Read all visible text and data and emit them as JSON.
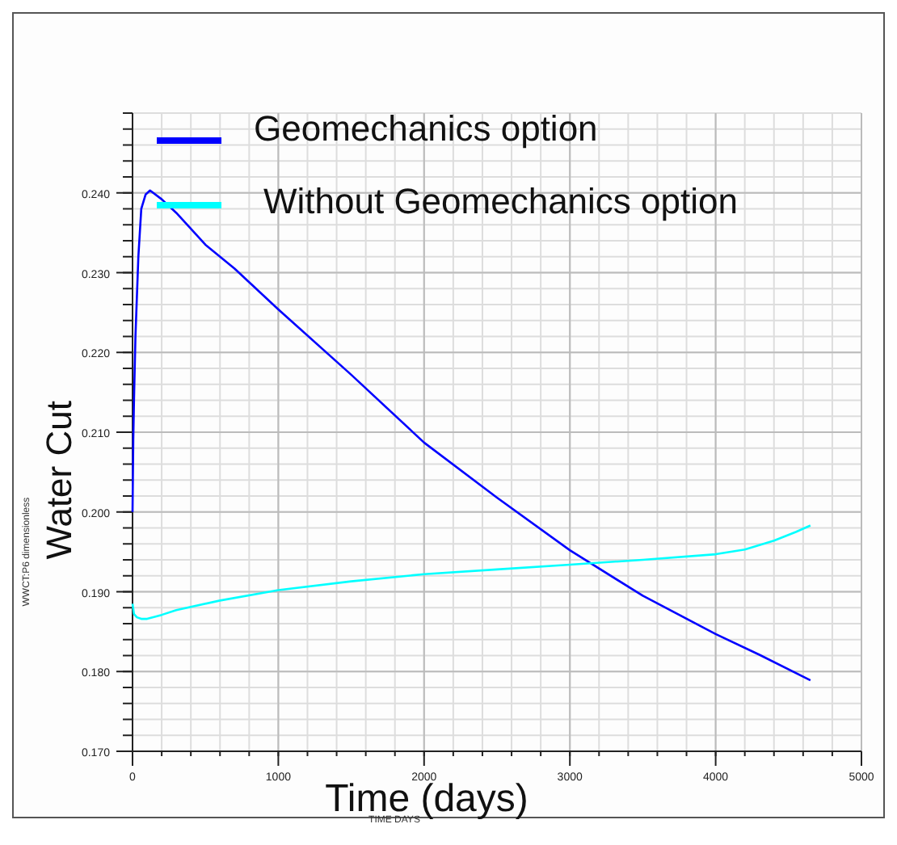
{
  "chart_data": {
    "type": "line",
    "xlabel": "Time (days)",
    "ylabel": "Water Cut",
    "annotations": [
      "WWCT:P6    dimensionless",
      "TIME    DAYS"
    ],
    "xlim": [
      0,
      5000
    ],
    "xticks": [
      0,
      1000,
      2000,
      3000,
      4000,
      5000
    ],
    "ylim": [
      0.17,
      0.25
    ],
    "yticks": [
      {
        "value": 0.17,
        "label": "0.170"
      },
      {
        "value": 0.18,
        "label": "0.180"
      },
      {
        "value": 0.19,
        "label": "0.190"
      },
      {
        "value": 0.2,
        "label": "0.200"
      },
      {
        "value": 0.21,
        "label": "0.210"
      },
      {
        "value": 0.22,
        "label": "0.220"
      },
      {
        "value": 0.23,
        "label": "0.230"
      },
      {
        "value": 0.24,
        "label": "0.240"
      }
    ],
    "grid": true,
    "legend": "top",
    "line_style": "solid",
    "marker": "none",
    "series": [
      {
        "name": "Geomechanics option",
        "color": "#0000ff",
        "x": [
          0,
          5,
          10,
          20,
          40,
          60,
          90,
          120,
          200,
          300,
          500,
          700,
          1000,
          1500,
          2000,
          2500,
          3000,
          3500,
          4000,
          4300,
          4650
        ],
        "values": [
          0.2,
          0.209,
          0.214,
          0.222,
          0.232,
          0.238,
          0.2398,
          0.2403,
          0.2392,
          0.2375,
          0.2335,
          0.2305,
          0.2254,
          0.2172,
          0.2087,
          0.2018,
          0.1952,
          0.1895,
          0.1847,
          0.1821,
          0.1789
        ]
      },
      {
        "name": "Without Geomechanics option",
        "color": "#00ffff",
        "x": [
          0,
          10,
          30,
          60,
          100,
          200,
          300,
          600,
          1000,
          1500,
          2000,
          2500,
          3000,
          3500,
          4000,
          4200,
          4400,
          4550,
          4650
        ],
        "values": [
          0.1885,
          0.1872,
          0.1868,
          0.1866,
          0.1866,
          0.1871,
          0.1877,
          0.1889,
          0.1902,
          0.1913,
          0.1922,
          0.1928,
          0.1934,
          0.194,
          0.1947,
          0.1953,
          0.1964,
          0.1975,
          0.1983
        ]
      }
    ]
  }
}
